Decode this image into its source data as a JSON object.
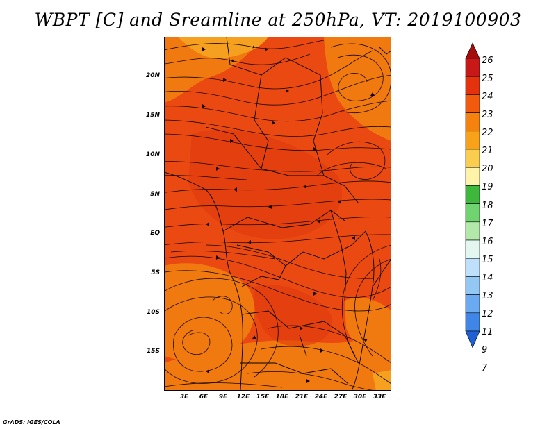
{
  "title": "WBPT [C] and Sreamline at 250hPa, VT: 2019100903",
  "credit": "GrADS: IGES/COLA",
  "map": {
    "lat_labels": [
      "20N",
      "15N",
      "10N",
      "5N",
      "EQ",
      "5S",
      "10S",
      "15S"
    ],
    "lon_labels": [
      "3E",
      "6E",
      "9E",
      "12E",
      "15E",
      "18E",
      "21E",
      "24E",
      "27E",
      "30E",
      "33E"
    ],
    "field_colors": {
      "dominant": "#ea4a12",
      "warm_core": "#e0380c",
      "cooler": "#f07a10",
      "coolest": "#f6a020"
    }
  },
  "colorbar": {
    "labels": [
      "26",
      "25",
      "24",
      "23",
      "22",
      "21",
      "20",
      "19",
      "18",
      "17",
      "16",
      "15",
      "14",
      "13",
      "12",
      "11",
      "9",
      "7"
    ],
    "colors": [
      "#a50d0d",
      "#c81818",
      "#e3320d",
      "#f25a10",
      "#f5820e",
      "#f8a21a",
      "#fbcd4e",
      "#fef3a8",
      "#3db83d",
      "#6fd46f",
      "#b2e8a8",
      "#e3f7f0",
      "#bfe0fa",
      "#94c8f4",
      "#6aaaf0",
      "#3f86e6",
      "#2060d6"
    ]
  }
}
